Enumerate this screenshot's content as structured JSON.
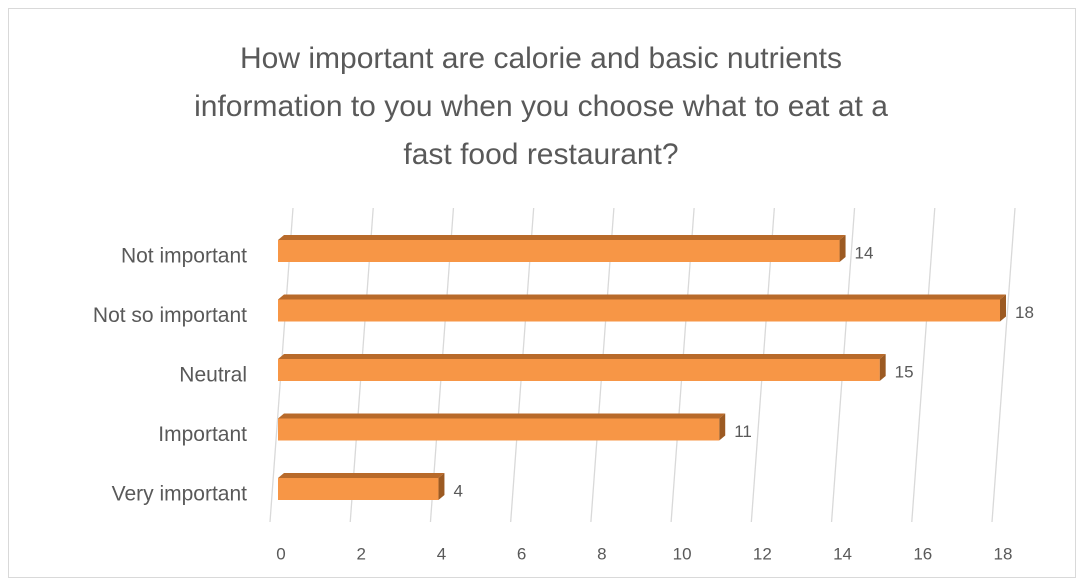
{
  "chart_data": {
    "type": "bar3d-horizontal",
    "title": "How important are calorie and basic nutrients information to you when you choose what to eat at a fast food restaurant?",
    "title_lines": [
      "How important are calorie and basic nutrients",
      "information to you when you choose what to eat at a",
      "fast food restaurant?"
    ],
    "categories": [
      "Not important",
      "Not so important",
      "Neutral",
      "Important",
      "Very important"
    ],
    "values": [
      14,
      18,
      15,
      11,
      4
    ],
    "color": "#f79646",
    "xlim": [
      0,
      18
    ],
    "xticks": [
      0,
      2,
      4,
      6,
      8,
      10,
      12,
      14,
      16,
      18
    ],
    "grid": true
  }
}
